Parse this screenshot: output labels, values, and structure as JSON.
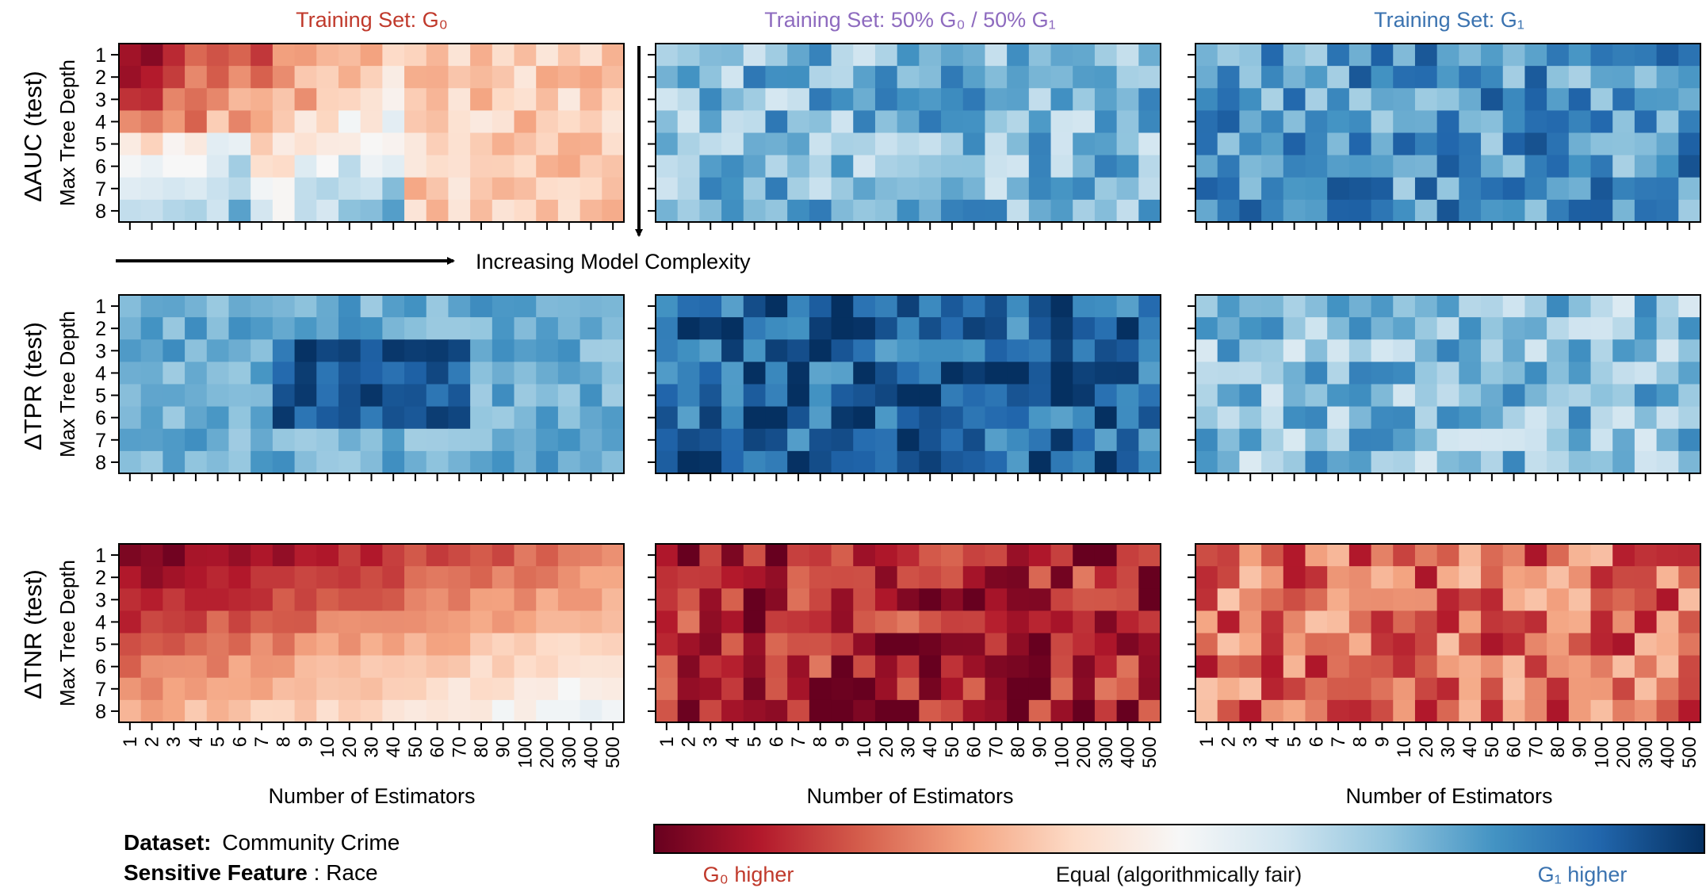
{
  "figure": {
    "dataset_label": "Dataset:",
    "dataset_value": "Community Crime",
    "feature_label": "Sensitive Feature",
    "feature_value": ": Race",
    "complexity_label": "Increasing Model Complexity"
  },
  "colors": {
    "g0": "#c0392b",
    "mixed": "#8e6bbf",
    "g1": "#3b73b0",
    "scale": [
      "#67001f",
      "#b2182b",
      "#d6604d",
      "#f4a582",
      "#fddbc7",
      "#f7f7f7",
      "#d1e5f0",
      "#92c5de",
      "#4393c3",
      "#2166ac",
      "#053061"
    ]
  },
  "colorbar": {
    "left_label": "G₀ higher",
    "center_label": "Equal (algorithmically fair)",
    "right_label": "G₁ higher",
    "range": [
      -1,
      1
    ]
  },
  "chart_data": {
    "type": "heatmap",
    "columns": [
      {
        "title": "Training Set: G₀",
        "title_color": "g0"
      },
      {
        "title": "Training Set: 50% G₀ / 50% G₁",
        "title_color": "mixed"
      },
      {
        "title": "Training Set: G₁",
        "title_color": "g1"
      }
    ],
    "rows": [
      {
        "metric": "ΔAUC (test)",
        "ylabel": "Max Tree Depth"
      },
      {
        "metric": "ΔTPR (test)",
        "ylabel": "Max Tree Depth"
      },
      {
        "metric": "ΔTNR (test)",
        "ylabel": "Max Tree Depth"
      }
    ],
    "x_ticks": [
      "1",
      "2",
      "3",
      "4",
      "5",
      "6",
      "7",
      "8",
      "9",
      "10",
      "20",
      "30",
      "40",
      "50",
      "60",
      "70",
      "80",
      "90",
      "100",
      "200",
      "300",
      "400",
      "500"
    ],
    "y_ticks": [
      "1",
      "2",
      "3",
      "4",
      "5",
      "6",
      "7",
      "8"
    ],
    "xlabel": "Number of Estimators",
    "colormap": "RdBu (negative = G0 higher, positive = G1 higher)",
    "vrange": [
      -1,
      1
    ],
    "panel_means": [
      [
        -0.05,
        0.45,
        0.6
      ],
      [
        0.62,
        0.8,
        0.42
      ],
      [
        -0.6,
        -0.8,
        -0.55
      ]
    ]
  }
}
